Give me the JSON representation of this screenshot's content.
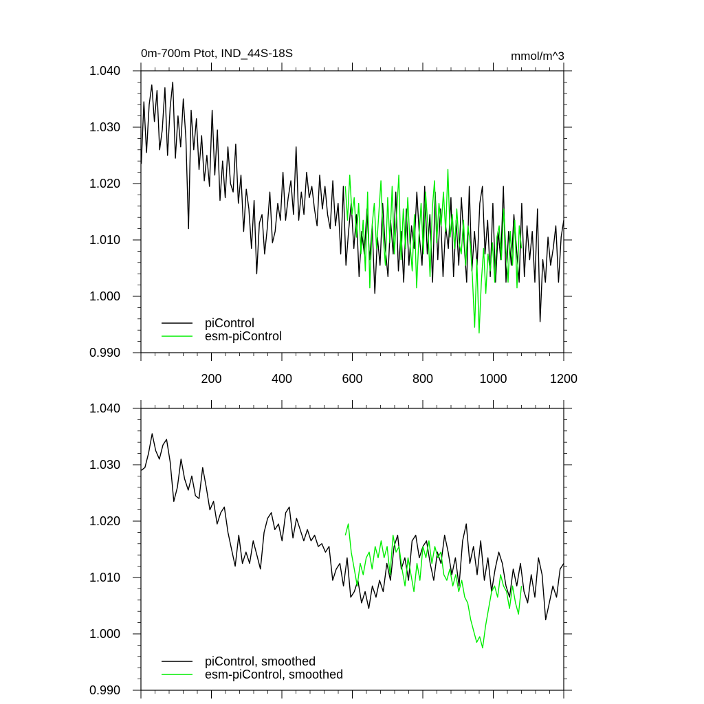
{
  "chart_data": [
    {
      "type": "line",
      "title": "0m-700m Ptot, IND_44S-18S",
      "units": "mmol/m^3",
      "xlabel": "",
      "ylabel": "",
      "xlim": [
        0,
        1200
      ],
      "ylim": [
        0.99,
        1.04
      ],
      "yticks": [
        "1.040",
        "1.030",
        "1.020",
        "1.010",
        "1.000",
        "0.990"
      ],
      "xticks": [
        "200",
        "400",
        "600",
        "800",
        "1000",
        "1200"
      ],
      "legend_position": "bottom-left",
      "series": [
        {
          "name": "piControl",
          "color": "#000000",
          "x_start": 1,
          "x_end": 1200,
          "values": [
            1.0235,
            1.0345,
            1.0255,
            1.034,
            1.0375,
            1.031,
            1.0365,
            1.026,
            1.0295,
            1.037,
            1.025,
            1.0335,
            1.038,
            1.0245,
            1.032,
            1.0265,
            1.035,
            1.028,
            1.012,
            1.033,
            1.026,
            1.0315,
            1.0225,
            1.0285,
            1.0205,
            1.025,
            1.0195,
            1.033,
            1.0215,
            1.0295,
            1.017,
            1.024,
            1.0175,
            1.0265,
            1.02,
            1.0185,
            1.027,
            1.0165,
            1.0215,
            1.0115,
            1.019,
            1.0155,
            1.0085,
            1.017,
            1.004,
            1.013,
            1.0145,
            1.0075,
            1.012,
            1.0185,
            1.0095,
            1.0115,
            1.0165,
            1.0135,
            1.022,
            1.0135,
            1.0175,
            1.0205,
            1.0145,
            1.0265,
            1.0135,
            1.0185,
            1.0145,
            1.022,
            1.0175,
            1.0195,
            1.0155,
            1.0125,
            1.0215,
            1.0155,
            1.0195,
            1.0145,
            1.012,
            1.0205,
            1.0125,
            1.0165,
            1.0075,
            1.0195,
            1.0055,
            1.0115,
            1.0165,
            1.0085,
            1.0145,
            1.0035,
            1.0115,
            1.0075,
            1.0155,
            1.0065,
            1.0125,
            1.0005,
            1.0105,
            1.0055,
            1.0165,
            1.0085,
            1.0035,
            1.0135,
            1.0075,
            1.0185,
            1.0045,
            1.0115,
            1.0025,
            1.0155,
            1.0055,
            1.0125,
            1.0085,
            1.0185,
            1.0105,
            1.0055,
            1.0195,
            1.0075,
            1.0145,
            1.0025,
            1.0185,
            1.0065,
            1.0155,
            1.0035,
            1.0125,
            1.0085,
            1.0175,
            1.0035,
            1.0135,
            1.0055,
            1.0175,
            1.0095,
            1.0025,
            1.0195,
            1.0045,
            1.0115,
            1.0055,
            1.0165,
            1.0195,
            1.0075,
            1.0135,
            1.0035,
            1.0165,
            1.0025,
            1.0115,
            1.0065,
            1.0195,
            1.0025,
            1.0115,
            1.0055,
            1.0145,
            1.0085,
            1.0025,
            1.0165,
            1.0035,
            1.0125,
            1.0065,
            1.0115,
            1.0025,
            1.0155,
            0.9955,
            1.0065,
            1.0025,
            1.0105,
            1.0055,
            1.0085,
            1.0125,
            1.0025,
            1.0105,
            1.0135
          ]
        },
        {
          "name": "esm-piControl",
          "color": "#00ee00",
          "x_start": 580,
          "x_end": 1080,
          "values": [
            1.0195,
            1.0135,
            1.0215,
            1.0145,
            1.0175,
            1.0105,
            1.0165,
            1.0075,
            1.0135,
            1.0045,
            1.0185,
            1.0015,
            1.0125,
            1.0165,
            1.0085,
            1.0145,
            1.0205,
            1.0105,
            1.0055,
            1.0175,
            1.0095,
            1.0195,
            1.0075,
            1.0145,
            1.0215,
            1.0065,
            1.0155,
            1.0085,
            1.0175,
            1.0095,
            1.0045,
            1.0145,
            1.0015,
            1.0105,
            1.0165,
            1.0075,
            1.0185,
            1.0125,
            1.0035,
            1.0155,
            1.0205,
            1.0095,
            1.0165,
            1.0125,
            1.0185,
            1.0115,
            1.0225,
            1.0105,
            1.0145,
            1.0085,
            1.0155,
            1.0095,
            1.0075,
            1.0135,
            1.0055,
            1.0125,
            1.0095,
            1.0035,
            0.9945,
            1.0065,
            0.9935,
            1.0025,
            1.0085,
            1.0005,
            1.0075,
            1.0045,
            1.0095,
            1.0025,
            1.0105,
            1.0125,
            1.0065,
            1.0155,
            1.0085,
            1.0025,
            1.0115,
            1.0055,
            1.0135,
            1.0015,
            1.0125,
            1.0085
          ]
        }
      ]
    },
    {
      "type": "line",
      "title": "",
      "xlabel": "",
      "ylabel": "",
      "xlim": [
        0,
        1200
      ],
      "ylim": [
        0.99,
        1.04
      ],
      "yticks": [
        "1.040",
        "1.030",
        "1.020",
        "1.010",
        "1.000",
        "0.990"
      ],
      "legend_position": "bottom-left",
      "series": [
        {
          "name": "piControl, smoothed",
          "color": "#000000",
          "x_start": 1,
          "x_end": 1200,
          "values": [
            1.029,
            1.0295,
            1.032,
            1.0355,
            1.0325,
            1.031,
            1.0335,
            1.0345,
            1.0305,
            1.0235,
            1.026,
            1.031,
            1.0275,
            1.0255,
            1.028,
            1.0245,
            1.024,
            1.0295,
            1.026,
            1.022,
            1.0235,
            1.0195,
            1.0215,
            1.0225,
            1.018,
            1.015,
            1.012,
            1.0175,
            1.0125,
            1.0145,
            1.0125,
            1.0165,
            1.014,
            1.0115,
            1.018,
            1.0205,
            1.0215,
            1.0185,
            1.0195,
            1.0165,
            1.0215,
            1.0225,
            1.017,
            1.0205,
            1.0185,
            1.0165,
            1.0185,
            1.0165,
            1.0175,
            1.0155,
            1.016,
            1.0145,
            1.0155,
            1.0095,
            1.0115,
            1.0125,
            1.0085,
            1.0135,
            1.0065,
            1.0075,
            1.0095,
            1.0055,
            1.0075,
            1.0045,
            1.0085,
            1.0065,
            1.0095,
            1.0075,
            1.0125,
            1.0095,
            1.0155,
            1.0175,
            1.0115,
            1.0135,
            1.0095,
            1.0165,
            1.0175,
            1.0135,
            1.0155,
            1.0165,
            1.0125,
            1.0095,
            1.0145,
            1.0125,
            1.0175,
            1.0145,
            1.0105,
            1.0135,
            1.0085,
            1.0165,
            1.0195,
            1.0125,
            1.0155,
            1.0105,
            1.0165,
            1.0095,
            1.0135,
            1.0075,
            1.0115,
            1.0145,
            1.0125,
            1.0085,
            1.0065,
            1.0115,
            1.0085,
            1.0125,
            1.0075,
            1.0055,
            1.0105,
            1.0065,
            1.0135,
            1.0105,
            1.0025,
            1.0055,
            1.0085,
            1.0065,
            1.0115,
            1.0125
          ]
        },
        {
          "name": "esm-piControl, smoothed",
          "color": "#00ee00",
          "x_start": 580,
          "x_end": 1080,
          "values": [
            1.0175,
            1.0195,
            1.0145,
            1.0115,
            1.0085,
            1.0125,
            1.0105,
            1.0135,
            1.0145,
            1.0115,
            1.0155,
            1.0135,
            1.0165,
            1.0135,
            1.0155,
            1.0105,
            1.0175,
            1.0145,
            1.0155,
            1.0115,
            1.0085,
            1.0135,
            1.0105,
            1.0075,
            1.0125,
            1.0095,
            1.0155,
            1.0135,
            1.0165,
            1.0125,
            1.0155,
            1.0135,
            1.0145,
            1.0105,
            1.0095,
            1.0115,
            1.0085,
            1.0105,
            1.0075,
            1.0095,
            1.0065,
            1.0055,
            1.0025,
            1.0005,
            0.9985,
            0.9995,
            0.9975,
            1.0015,
            1.0045,
            1.0075,
            1.0085,
            1.0065,
            1.0105,
            1.0085,
            1.0075,
            1.0045,
            1.0085,
            1.0055,
            1.0035,
            1.0085
          ]
        }
      ]
    }
  ]
}
